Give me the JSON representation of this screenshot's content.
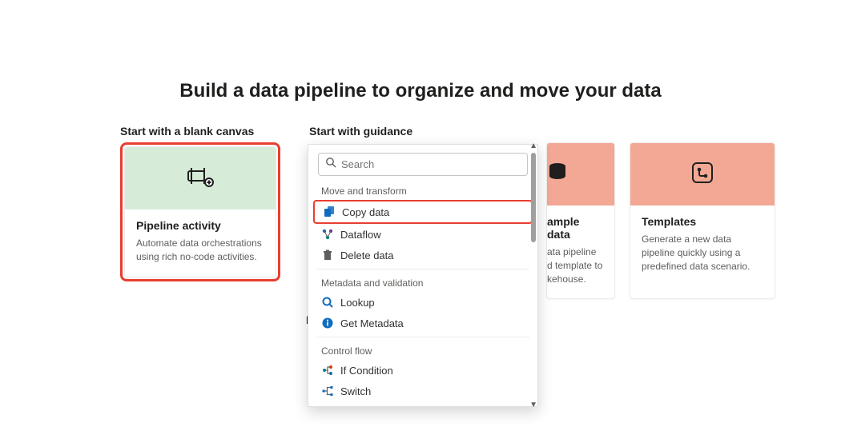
{
  "title": "Build a data pipeline to organize and move your data",
  "sections": {
    "blank": "Start with a blank canvas",
    "guidance": "Start with guidance"
  },
  "pipeline_card": {
    "hero_bg": "#d6ecd9",
    "title": "Pipeline activity",
    "desc": "Automate data orchestrations using rich no-code activities."
  },
  "sample_card": {
    "hero_bg": "#f2a894",
    "title_suffix": "ample data",
    "desc_l1": "ata pipeline",
    "desc_l2": "d template to",
    "desc_l3": "kehouse."
  },
  "templates_card": {
    "hero_bg": "#f2a894",
    "title": "Templates",
    "desc": "Generate a new data pipeline quickly using a predefined data scenario."
  },
  "more_label_clip": "M",
  "dropdown": {
    "search_placeholder": "Search",
    "groups": [
      {
        "label": "Move and transform",
        "items": [
          {
            "key": "copy-data",
            "label": "Copy data",
            "icon": "copy",
            "highlight": true
          },
          {
            "key": "dataflow",
            "label": "Dataflow",
            "icon": "dataflow"
          },
          {
            "key": "delete-data",
            "label": "Delete data",
            "icon": "trash"
          }
        ]
      },
      {
        "label": "Metadata and validation",
        "items": [
          {
            "key": "lookup",
            "label": "Lookup",
            "icon": "lookup"
          },
          {
            "key": "get-metadata",
            "label": "Get Metadata",
            "icon": "info"
          }
        ]
      },
      {
        "label": "Control flow",
        "items": [
          {
            "key": "if-condition",
            "label": "If Condition",
            "icon": "if"
          },
          {
            "key": "switch",
            "label": "Switch",
            "icon": "switch"
          }
        ]
      }
    ]
  },
  "highlight_color": "#e83e2f"
}
